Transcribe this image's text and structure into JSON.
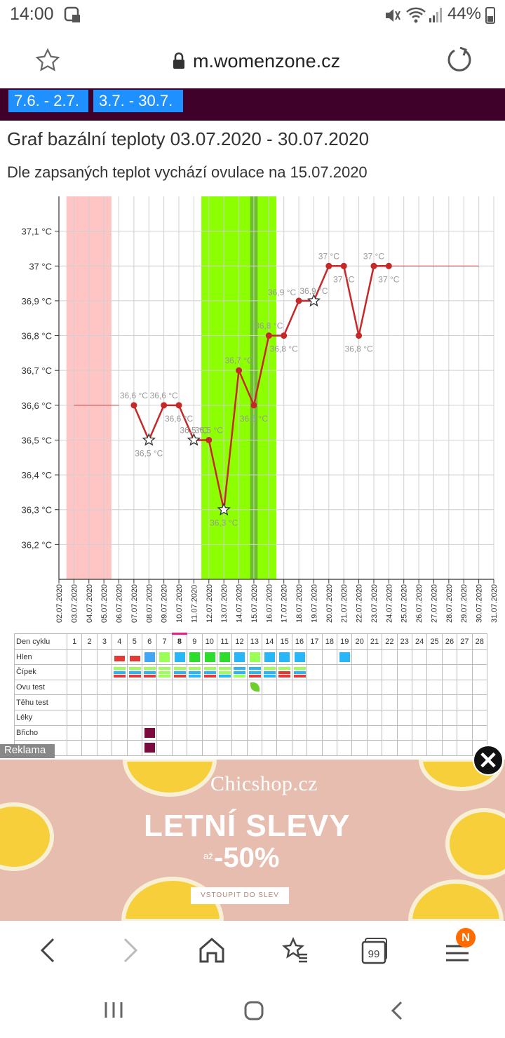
{
  "status_bar": {
    "time": "14:00",
    "battery": "44%"
  },
  "address_bar": {
    "url": "m.womenzone.cz"
  },
  "period_tabs": [
    {
      "label": "7.6. - 2.7."
    },
    {
      "label": "3.7. - 30.7."
    }
  ],
  "page": {
    "title": "Graf bazální teploty 03.07.2020 - 30.07.2020",
    "subtitle": "Dle zapsaných teplot vychází ovulace na 15.07.2020"
  },
  "chart_data": {
    "type": "line",
    "y_ticks": [
      "36,2 °C",
      "36,3 °C",
      "36,4 °C",
      "36,5 °C",
      "36,6 °C",
      "36,7 °C",
      "36,8 °C",
      "36,9 °C",
      "37 °C",
      "37,1 °C"
    ],
    "ylim": [
      36.1,
      37.2
    ],
    "x_dates": [
      "02.07.2020",
      "03.07.2020",
      "04.07.2020",
      "05.07.2020",
      "06.07.2020",
      "07.07.2020",
      "08.07.2020",
      "09.07.2020",
      "10.07.2020",
      "11.07.2020",
      "12.07.2020",
      "13.07.2020",
      "14.07.2020",
      "15.07.2020",
      "16.07.2020",
      "17.07.2020",
      "18.07.2020",
      "19.07.2020",
      "20.07.2020",
      "21.07.2020",
      "22.07.2020",
      "23.07.2020",
      "24.07.2020",
      "25.07.2020",
      "26.07.2020",
      "27.07.2020",
      "28.07.2020",
      "29.07.2020",
      "30.07.2020",
      "31.07.2020"
    ],
    "points": [
      {
        "date": "07.07.2020",
        "value": 36.6,
        "label": "36,6 °C",
        "marker": "dot",
        "label_pos": "above"
      },
      {
        "date": "08.07.2020",
        "value": 36.5,
        "label": "36,5 °C",
        "marker": "star",
        "label_pos": "below"
      },
      {
        "date": "09.07.2020",
        "value": 36.6,
        "label": "36,6 °C",
        "marker": "dot",
        "label_pos": "above"
      },
      {
        "date": "10.07.2020",
        "value": 36.6,
        "label": "36,6 °C",
        "marker": "dot",
        "label_pos": "below"
      },
      {
        "date": "11.07.2020",
        "value": 36.5,
        "label": "36,5 °C",
        "marker": "star",
        "label_pos": "above"
      },
      {
        "date": "12.07.2020",
        "value": 36.5,
        "label": "36,5 °C",
        "marker": "dot",
        "label_pos": "above"
      },
      {
        "date": "13.07.2020",
        "value": 36.3,
        "label": "36,3 °C",
        "marker": "star",
        "label_pos": "below"
      },
      {
        "date": "14.07.2020",
        "value": 36.7,
        "label": "36,7 °C",
        "marker": "dot",
        "label_pos": "above"
      },
      {
        "date": "15.07.2020",
        "value": 36.6,
        "label": "36,6 °C",
        "marker": "dot",
        "label_pos": "below"
      },
      {
        "date": "16.07.2020",
        "value": 36.8,
        "label": "36,8 °C",
        "marker": "dot",
        "label_pos": "above"
      },
      {
        "date": "17.07.2020",
        "value": 36.8,
        "label": "36,8 °C",
        "marker": "dot",
        "label_pos": "below"
      },
      {
        "date": "18.07.2020",
        "value": 36.9,
        "label": "36,9 °C",
        "marker": "dot",
        "label_pos": "above-left"
      },
      {
        "date": "19.07.2020",
        "value": 36.9,
        "label": "36,9 °C",
        "marker": "star",
        "label_pos": "above"
      },
      {
        "date": "20.07.2020",
        "value": 37.0,
        "label": "37 °C",
        "marker": "dot",
        "label_pos": "above"
      },
      {
        "date": "21.07.2020",
        "value": 37.0,
        "label": "37 °C",
        "marker": "dot",
        "label_pos": "below"
      },
      {
        "date": "22.07.2020",
        "value": 36.8,
        "label": "36,8 °C",
        "marker": "dot",
        "label_pos": "below"
      },
      {
        "date": "23.07.2020",
        "value": 37.0,
        "label": "37 °C",
        "marker": "dot",
        "label_pos": "above"
      },
      {
        "date": "24.07.2020",
        "value": 37.0,
        "label": "37 °C",
        "marker": "dot",
        "label_pos": "below"
      }
    ],
    "baseline_segments": [
      {
        "from": "03.07.2020",
        "to": "06.07.2020",
        "value": 36.6
      },
      {
        "from": "24.07.2020",
        "to": "30.07.2020",
        "value": 37.0
      }
    ],
    "bands": [
      {
        "from": "03.07.2020",
        "to": "05.07.2020",
        "color": "#ffc4c4",
        "kind": "menstruation"
      },
      {
        "from": "12.07.2020",
        "to": "16.07.2020",
        "color": "#8cff00",
        "kind": "fertile"
      },
      {
        "from": "15.07.2020",
        "to": "15.07.2020",
        "color": "#6bbf2b",
        "kind": "ovulation"
      }
    ],
    "line_color": "#c62828",
    "grid": true
  },
  "cycle_table": {
    "header_label": "Den cyklu",
    "days": [
      "1",
      "2",
      "3",
      "4",
      "5",
      "6",
      "7",
      "8",
      "9",
      "10",
      "11",
      "12",
      "13",
      "14",
      "15",
      "16",
      "17",
      "18",
      "19",
      "20",
      "21",
      "22",
      "23",
      "24",
      "25",
      "26",
      "27",
      "28"
    ],
    "highlight_day": "8",
    "rows": [
      {
        "label": "Hlen",
        "cells": {
          "4": {
            "box": "#e53935",
            "size": "small"
          },
          "5": {
            "box": "#e53935",
            "size": "small"
          },
          "6": {
            "box": "#42a5f5"
          },
          "7": {
            "box": "#9cff57"
          },
          "8": {
            "box": "#29b6f6"
          },
          "9": {
            "box": "#2edc2e"
          },
          "10": {
            "box": "#2edc2e"
          },
          "11": {
            "box": "#2edc2e"
          },
          "12": {
            "box": "#29b6f6"
          },
          "13": {
            "box": "#9cff57"
          },
          "14": {
            "box": "#29b6f6"
          },
          "15": {
            "box": "#29b6f6"
          },
          "16": {
            "box": "#29b6f6"
          },
          "19": {
            "box": "#29b6f6"
          }
        }
      },
      {
        "label": "Čípek",
        "cells": {
          "4": {
            "stripes": [
              "#9cff57",
              "#29b6f6",
              "#e53935"
            ]
          },
          "5": {
            "stripes": [
              "#9cff57",
              "#29b6f6",
              "#e53935"
            ]
          },
          "6": {
            "stripes": [
              "#9cff57",
              "#29b6f6",
              "#e53935"
            ]
          },
          "7": {
            "stripes": [
              "#9cff57",
              "#9cff57",
              "#9cff57"
            ]
          },
          "8": {
            "stripes": [
              "#9cff57",
              "#29b6f6",
              "#e53935"
            ]
          },
          "9": {
            "stripes": [
              "#9cff57",
              "#29b6f6",
              "#29b6f6"
            ]
          },
          "10": {
            "stripes": [
              "#9cff57",
              "#29b6f6",
              "#e53935"
            ]
          },
          "11": {
            "stripes": [
              "#9cff57",
              "#9cff57",
              "#29b6f6"
            ]
          },
          "12": {
            "stripes": [
              "#29b6f6",
              "#29b6f6",
              "#9cff57"
            ]
          },
          "13": {
            "stripes": [
              "#29b6f6",
              "#29b6f6",
              "#e53935"
            ]
          },
          "14": {
            "stripes": [
              "#9cff57",
              "#29b6f6",
              "#29b6f6"
            ]
          },
          "15": {
            "stripes": [
              "#9cff57",
              "#e53935",
              "#e53935"
            ]
          },
          "16": {
            "stripes": [
              "#9cff57",
              "#29b6f6",
              "#e53935"
            ]
          }
        }
      },
      {
        "label": "Ovu test",
        "cells": {
          "13": {
            "leaf": "#6ccf2b"
          }
        }
      },
      {
        "label": "Těhu test",
        "cells": {}
      },
      {
        "label": "Léky",
        "cells": {}
      },
      {
        "label": "Břicho",
        "cells": {
          "6": {
            "box": "#7b0a3f"
          }
        }
      },
      {
        "label": "",
        "cells": {
          "6": {
            "box": "#7b0a3f"
          }
        }
      }
    ]
  },
  "ad": {
    "label": "Reklama",
    "brand": "Chicshop.cz",
    "headline": "LETNÍ SLEVY",
    "pre": "až",
    "discount": "-50%",
    "cta": "VSTOUPIT DO SLEV"
  },
  "bottom_nav": {
    "tabs_count": "99",
    "menu_badge": "N"
  }
}
